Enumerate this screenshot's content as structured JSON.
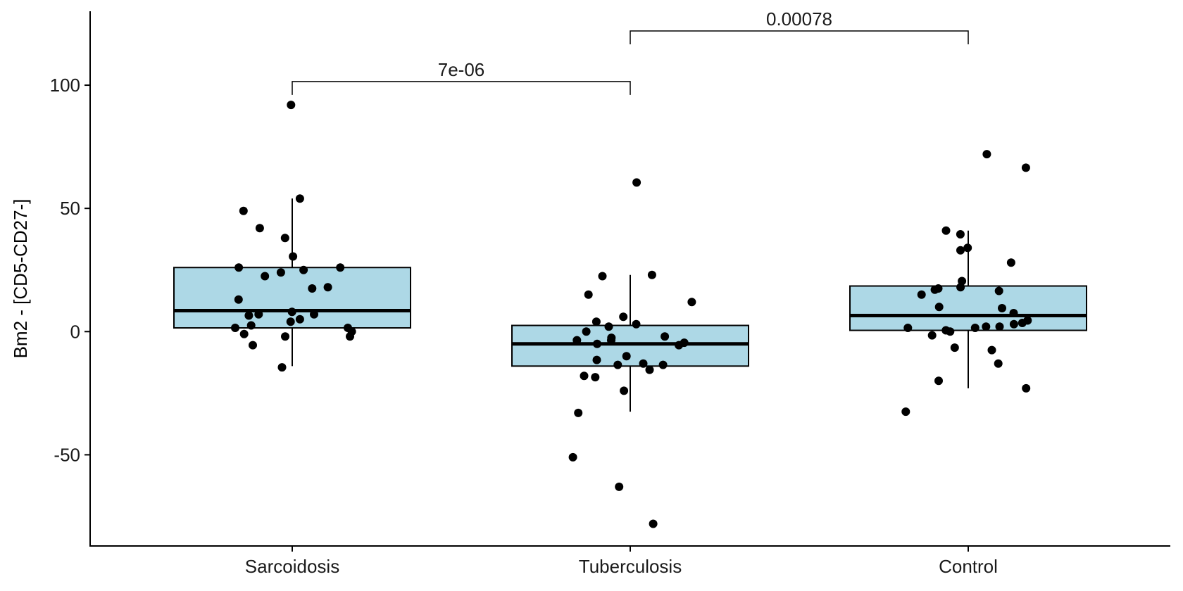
{
  "chart_data": {
    "type": "box",
    "ylabel": "Bm2 - [CD5-CD27-]",
    "xlabel": "",
    "title": "",
    "ylim": [
      -87,
      130
    ],
    "yticks": [
      100,
      50,
      0,
      -50
    ],
    "ytick_labels": [
      "100",
      "50",
      "0",
      "-50"
    ],
    "categories": [
      "Sarcoidosis",
      "Tuberculosis",
      "Control"
    ],
    "boxes": [
      {
        "category": "Sarcoidosis",
        "q1": 1.5,
        "median": 8.5,
        "q3": 26,
        "whisker_low": -14,
        "whisker_high": 54
      },
      {
        "category": "Tuberculosis",
        "q1": -14,
        "median": -5,
        "q3": 2.5,
        "whisker_low": -32.5,
        "whisker_high": 23
      },
      {
        "category": "Control",
        "q1": 0.5,
        "median": 6.5,
        "q3": 18.5,
        "whisker_low": -23,
        "whisker_high": 41
      }
    ],
    "points": [
      {
        "category": "Sarcoidosis",
        "y": [
          92,
          54,
          49,
          42,
          38,
          30.5,
          26,
          26,
          25,
          24,
          22.5,
          18,
          17.5,
          13,
          8,
          7,
          7,
          6.5,
          5,
          4,
          2.5,
          1.5,
          1.5,
          0,
          -1,
          -2,
          -2,
          -5.5,
          -14.5
        ]
      },
      {
        "category": "Tuberculosis",
        "y": [
          60.5,
          23,
          22.5,
          15,
          12,
          6,
          4,
          3,
          2,
          0,
          -2,
          -2.5,
          -3.5,
          -3.5,
          -4.5,
          -5,
          -5.5,
          -10,
          -11.5,
          -13,
          -13.5,
          -13.5,
          -15.5,
          -18,
          -18.5,
          -24,
          -33,
          -51,
          -63,
          -78
        ]
      },
      {
        "category": "Control",
        "y": [
          72,
          66.5,
          41,
          39.5,
          34,
          33,
          28,
          20.5,
          18,
          17.5,
          17,
          16.5,
          15,
          10,
          9.5,
          7.5,
          4.5,
          3.5,
          3,
          2,
          2,
          1.5,
          1.5,
          0.5,
          0,
          -1.5,
          -6.5,
          -7.5,
          -13,
          -20,
          -23,
          -32.5
        ]
      }
    ],
    "comparisons": [
      {
        "groups": [
          "Sarcoidosis",
          "Tuberculosis"
        ],
        "label": "7e-06"
      },
      {
        "groups": [
          "Tuberculosis",
          "Control"
        ],
        "label": "0.00078"
      }
    ],
    "colors": {
      "box_fill": "#add8e6",
      "box_stroke": "#000000",
      "point": "#000000",
      "axis": "#000000"
    },
    "grid": false,
    "legend": "none"
  }
}
